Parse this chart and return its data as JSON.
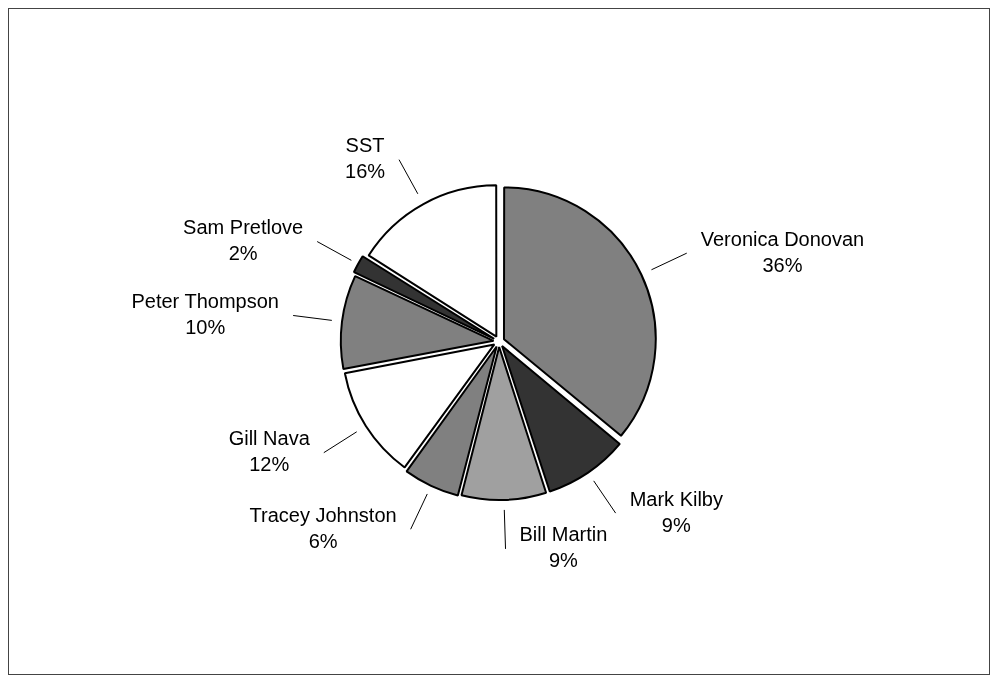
{
  "chart_data": {
    "type": "pie",
    "categories": [
      "Veronica Donovan",
      "Mark Kilby",
      "Bill Martin",
      "Tracey Johnston",
      "Gill Nava",
      "Peter Thompson",
      "Sam Pretlove",
      "SST"
    ],
    "values": [
      36,
      9,
      9,
      6,
      12,
      10,
      2,
      16
    ],
    "value_labels": [
      "36%",
      "9%",
      "9%",
      "6%",
      "12%",
      "10%",
      "2%",
      "16%"
    ],
    "colors": [
      "#808080",
      "#333333",
      "#a0a0a0",
      "#808080",
      "#ffffff",
      "#808080",
      "#333333",
      "#ffffff"
    ]
  }
}
